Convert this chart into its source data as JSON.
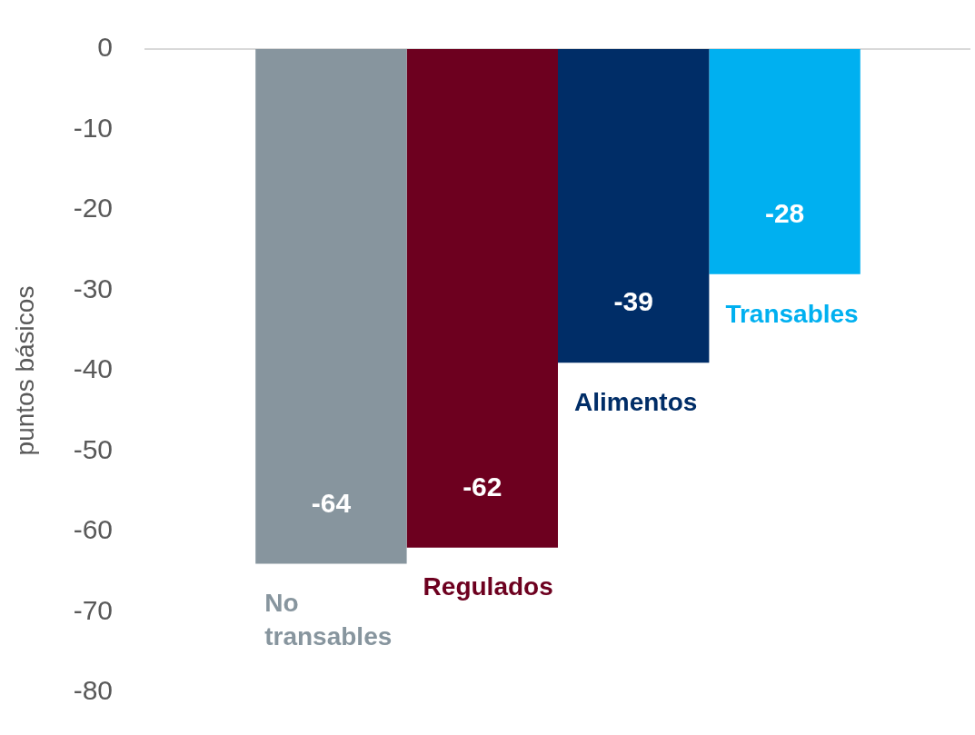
{
  "chart_data": {
    "type": "bar",
    "ylabel": "puntos básicos",
    "categories": [
      null
    ],
    "series": [
      {
        "name": "No transables",
        "color": "#87959e",
        "values": [
          -64
        ]
      },
      {
        "name": "Regulados",
        "color": "#6d001f",
        "values": [
          -62
        ]
      },
      {
        "name": "Alimentos",
        "color": "#002d67",
        "values": [
          -39
        ]
      },
      {
        "name": "Transables",
        "color": "#00b0f0",
        "values": [
          -28
        ]
      }
    ],
    "ylim": [
      -80,
      0
    ],
    "yticks": [
      0,
      -10,
      -20,
      -30,
      -40,
      -50,
      -60,
      -70,
      -80
    ],
    "data_labels": true,
    "tick_labels": "y",
    "legend": false
  }
}
